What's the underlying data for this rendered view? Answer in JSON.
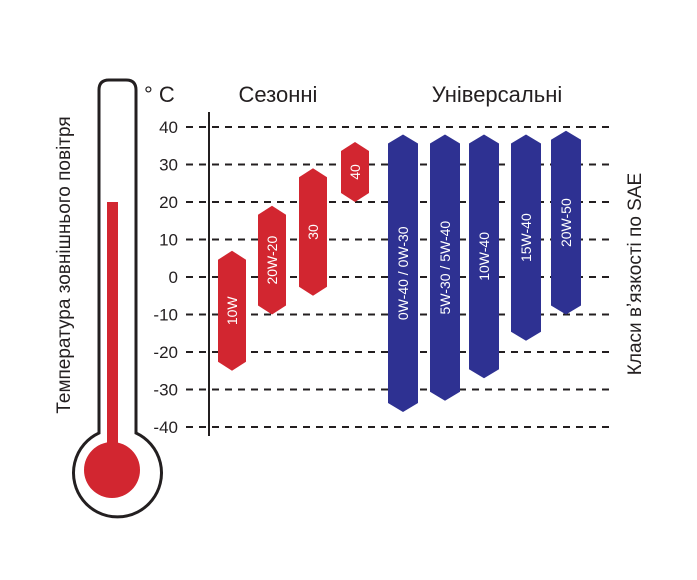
{
  "chart_data": {
    "type": "bar",
    "y_unit": "° C",
    "ylim": [
      -40,
      40
    ],
    "yticks": [
      "40",
      "30",
      "20",
      "10",
      "0",
      "-10",
      "-20",
      "-30",
      "-40"
    ],
    "ytick_values": [
      40,
      30,
      20,
      10,
      0,
      -10,
      -20,
      -30,
      -40
    ],
    "grid": true,
    "ylabel": "Температура зовнішнього повітря",
    "right_label": "Класи вʼязкості по SAE",
    "groups": [
      {
        "label": "Сезонні",
        "color": "#d22630"
      },
      {
        "label": "Універсальні",
        "color": "#2e3192"
      }
    ],
    "bars": [
      {
        "label": "10W",
        "group": 0,
        "low": -25,
        "high": 7
      },
      {
        "label": "20W-20",
        "group": 0,
        "low": -10,
        "high": 19
      },
      {
        "label": "30",
        "group": 0,
        "low": -5,
        "high": 29
      },
      {
        "label": "40",
        "group": 0,
        "low": 20,
        "high": 36
      },
      {
        "label": "0W-40 / 0W-30",
        "group": 1,
        "low": -36,
        "high": 38
      },
      {
        "label": "5W-30 / 5W-40",
        "group": 1,
        "low": -33,
        "high": 38
      },
      {
        "label": "10W-40",
        "group": 1,
        "low": -27,
        "high": 38
      },
      {
        "label": "15W-40",
        "group": 1,
        "low": -17,
        "high": 38
      },
      {
        "label": "20W-50",
        "group": 1,
        "low": -10,
        "high": 39
      }
    ]
  },
  "thermometer": {
    "level": 20,
    "color": "#d22630"
  }
}
